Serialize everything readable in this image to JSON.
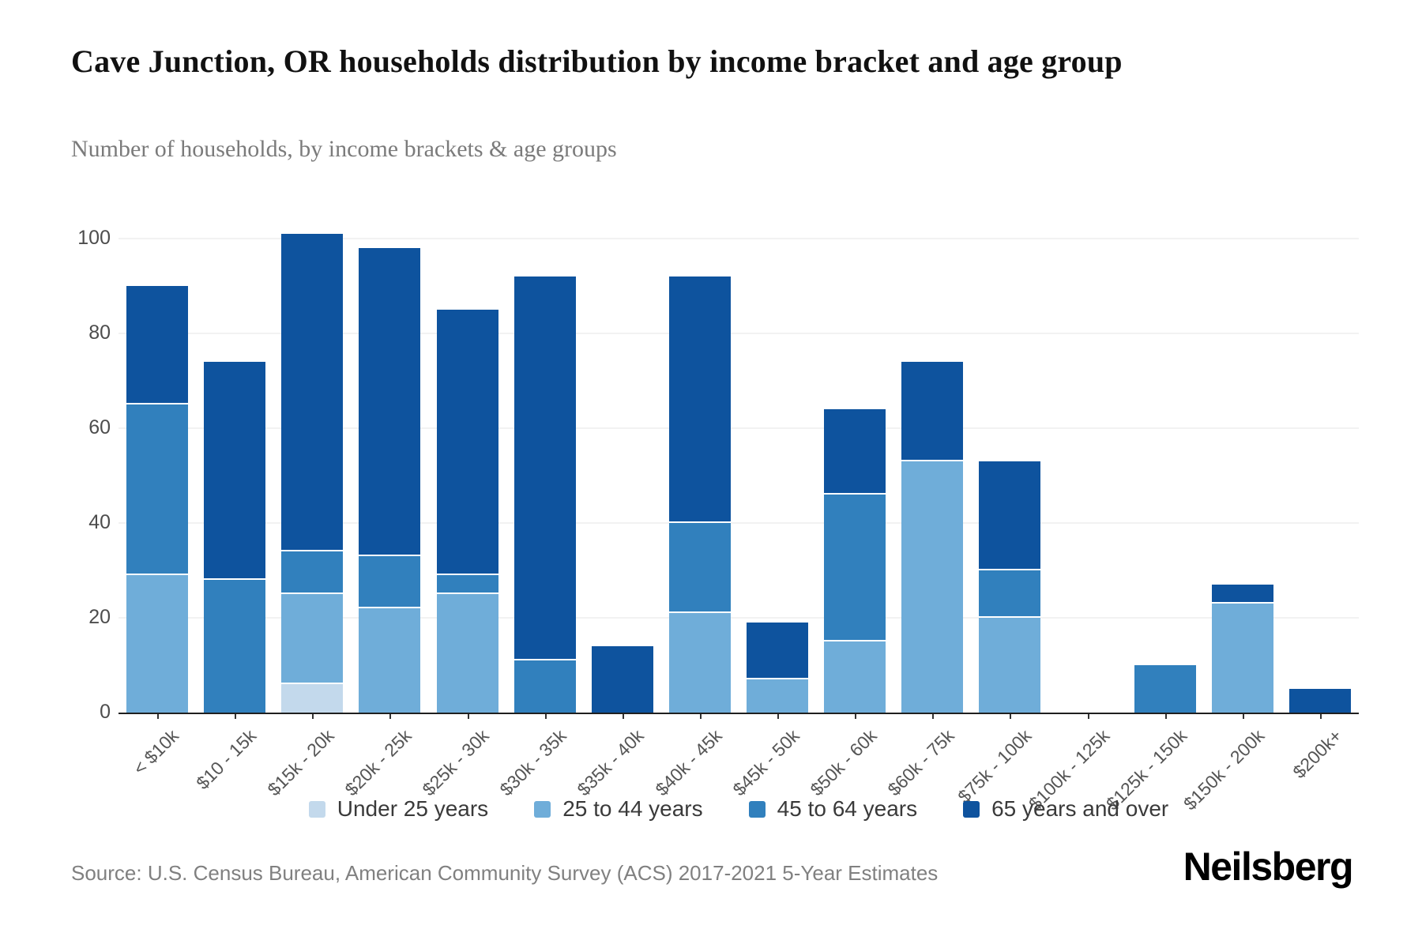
{
  "header": {
    "title": "Cave Junction, OR households distribution by income bracket and age group",
    "subtitle": "Number of households, by income brackets & age groups"
  },
  "footer": {
    "source": "Source: U.S. Census Bureau, American Community Survey (ACS) 2017-2021 5-Year Estimates",
    "logo": "Neilsberg"
  },
  "chart_data": {
    "type": "bar",
    "stacked": true,
    "title": "Cave Junction, OR households distribution by income bracket and age group",
    "subtitle": "Number of households, by income brackets & age groups",
    "xlabel": "",
    "ylabel": "",
    "ylim": [
      0,
      100
    ],
    "y_ticks": [
      0,
      20,
      40,
      60,
      80,
      100
    ],
    "grid": "horizontal",
    "legend_position": "bottom",
    "categories": [
      "< $10k",
      "$10 - 15k",
      "$15k - 20k",
      "$20k - 25k",
      "$25k - 30k",
      "$30k - 35k",
      "$35k - 40k",
      "$40k - 45k",
      "$45k - 50k",
      "$50k - 60k",
      "$60k - 75k",
      "$75k - 100k",
      "$100k - 125k",
      "$125k - 150k",
      "$150k - 200k",
      "$200k+"
    ],
    "series": [
      {
        "name": "Under 25 years",
        "color": "#c3d9ec",
        "values": [
          0,
          0,
          6,
          0,
          0,
          0,
          0,
          0,
          0,
          0,
          0,
          0,
          0,
          0,
          0,
          0
        ]
      },
      {
        "name": "25 to 44 years",
        "color": "#6fadd9",
        "values": [
          29,
          0,
          19,
          22,
          25,
          0,
          0,
          21,
          7,
          15,
          53,
          20,
          0,
          0,
          23,
          0
        ]
      },
      {
        "name": "45 to 64 years",
        "color": "#3180bd",
        "values": [
          36,
          28,
          9,
          11,
          4,
          11,
          0,
          19,
          0,
          31,
          0,
          10,
          0,
          10,
          0,
          0
        ]
      },
      {
        "name": "65 years and over",
        "color": "#0e539e",
        "values": [
          25,
          46,
          67,
          65,
          56,
          81,
          14,
          52,
          12,
          18,
          21,
          23,
          0,
          0,
          4,
          5
        ]
      }
    ],
    "stack_totals": [
      90,
      74,
      101,
      98,
      85,
      92,
      14,
      92,
      19,
      64,
      74,
      53,
      0,
      10,
      27,
      5
    ]
  }
}
